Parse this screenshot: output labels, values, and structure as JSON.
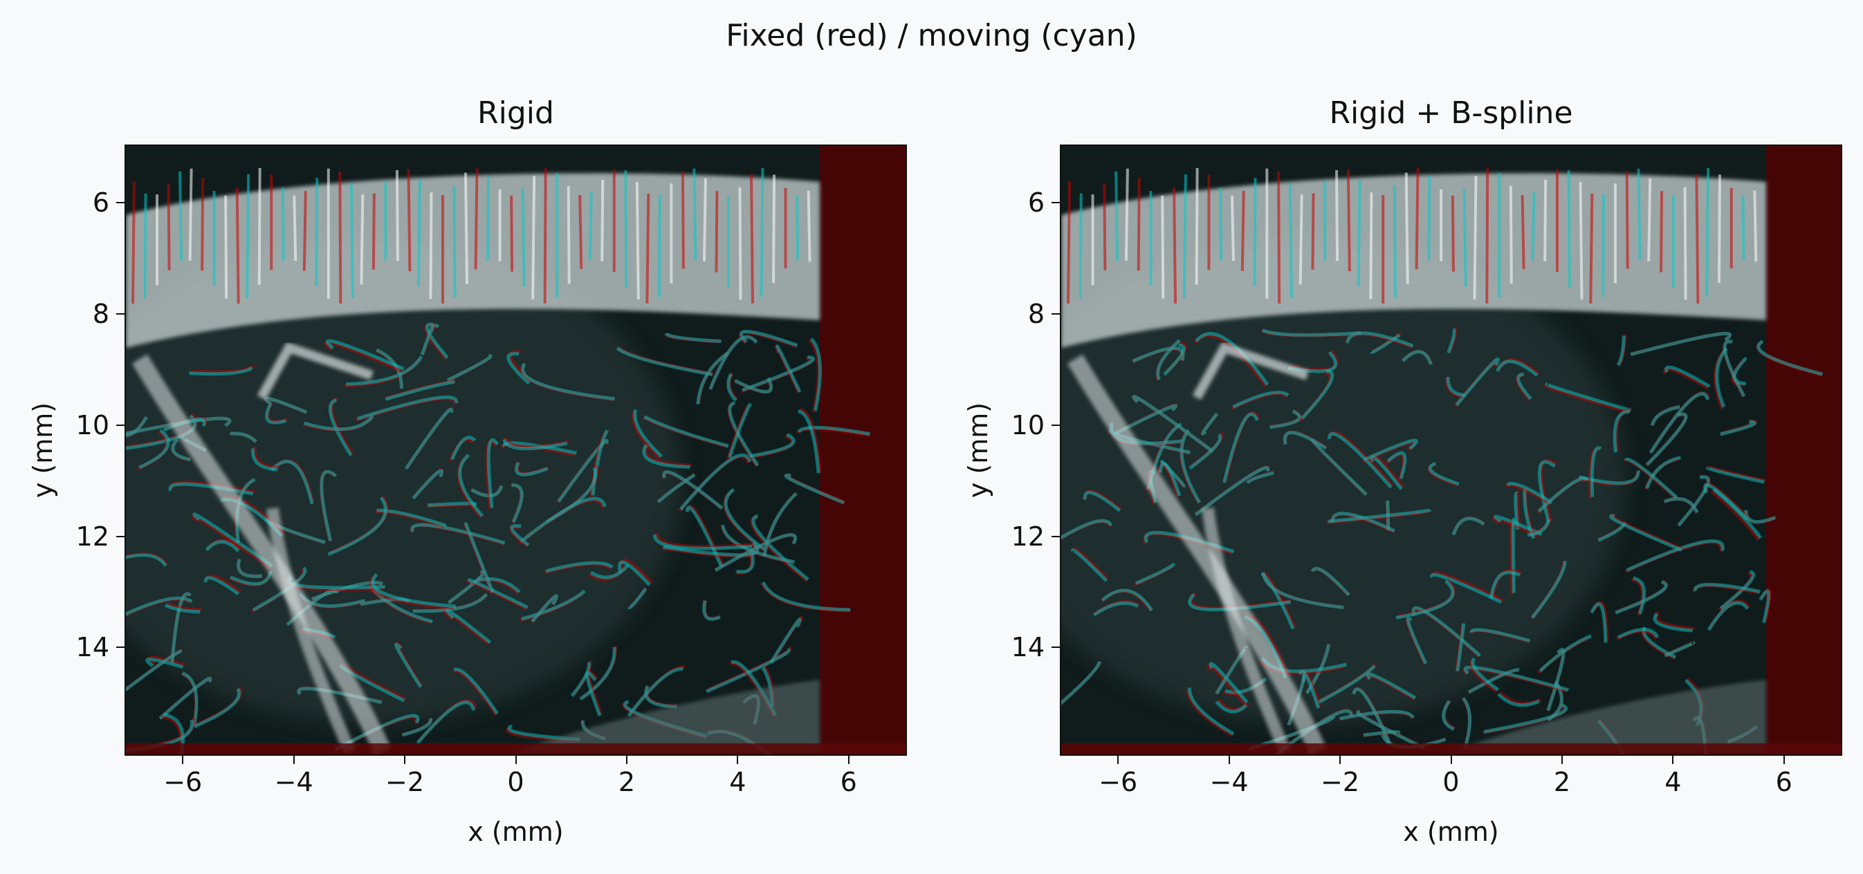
{
  "figure": {
    "suptitle": "Fixed (red) / moving (cyan)"
  },
  "chart_data": [
    {
      "type": "image",
      "title": "Rigid",
      "xlabel": "x (mm)",
      "ylabel": "y (mm)",
      "xlim": [
        -7.05,
        7.05
      ],
      "ylim": [
        15.95,
        4.95
      ],
      "y_inverted": true,
      "xticks": [
        -6,
        -4,
        -2,
        0,
        2,
        4,
        6
      ],
      "xtick_labels": [
        "−6",
        "−4",
        "−2",
        "0",
        "2",
        "4",
        "6"
      ],
      "yticks": [
        6,
        8,
        10,
        12,
        14
      ],
      "ytick_labels": [
        "6",
        "8",
        "10",
        "12",
        "14"
      ],
      "overlay": {
        "fixed_color": "#cc0000",
        "moving_color": "#00cccc",
        "fixed_channel": "red",
        "moving_channel": "cyan"
      },
      "moving_extent_x": [
        -7.05,
        5.5
      ],
      "grid": false
    },
    {
      "type": "image",
      "title": "Rigid + B-spline",
      "xlabel": "x (mm)",
      "ylabel": "y (mm)",
      "xlim": [
        -7.05,
        7.05
      ],
      "ylim": [
        15.95,
        4.95
      ],
      "y_inverted": true,
      "xticks": [
        -6,
        -4,
        -2,
        0,
        2,
        4,
        6
      ],
      "xtick_labels": [
        "−6",
        "−4",
        "−2",
        "0",
        "2",
        "4",
        "6"
      ],
      "yticks": [
        6,
        8,
        10,
        12,
        14
      ],
      "ytick_labels": [
        "6",
        "8",
        "10",
        "12",
        "14"
      ],
      "overlay": {
        "fixed_color": "#cc0000",
        "moving_color": "#00cccc",
        "fixed_channel": "red",
        "moving_channel": "cyan"
      },
      "moving_extent_x": [
        -7.05,
        5.7
      ],
      "grid": false
    }
  ]
}
